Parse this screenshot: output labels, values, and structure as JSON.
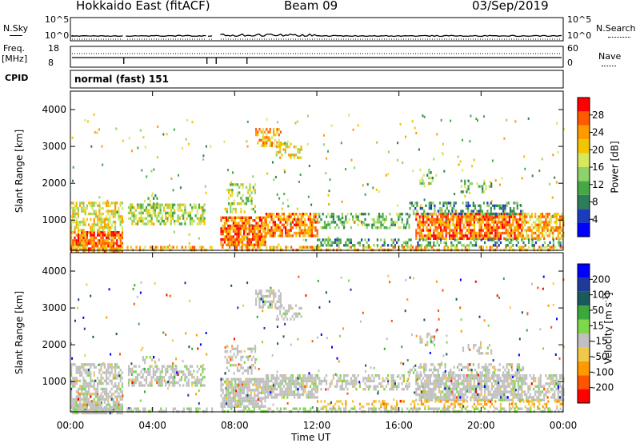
{
  "header": {
    "title": "Hokkaido East (fitACF)",
    "beam": "Beam 09",
    "date": "03/Sep/2019"
  },
  "param_panels": {
    "nsky_label": "N.Sky",
    "nsky_ticks": [
      "10^5",
      "10^0"
    ],
    "nsearch_label": "N.Search",
    "nsearch_ticks": [
      "10^5",
      "10^0"
    ],
    "freq_label": "Freq.",
    "freq_unit": "[MHz]",
    "freq_ticks": [
      "18",
      "8"
    ],
    "nave_label": "Nave",
    "nave_ticks": [
      "60",
      "0"
    ],
    "cpid_label": "CPID",
    "cpid_value": "normal (fast) 151"
  },
  "chart_data": [
    {
      "type": "heatmap",
      "title": "",
      "ylabel": "Slant Range [km]",
      "xlabel": "",
      "ylim": [
        180,
        4500
      ],
      "yticks": [
        "4000",
        "3000",
        "2000",
        "1000"
      ],
      "colorbar_label": "Power [dB]",
      "colorbar_ticks": [
        "28",
        "24",
        "20",
        "16",
        "12",
        "8",
        "4"
      ],
      "colors": [
        "#0000ff",
        "#1a3dbe",
        "#2e7d5a",
        "#45a845",
        "#8fd16a",
        "#d6e85c",
        "#f2c500",
        "#ff9a00",
        "#ff5a00",
        "#ff0000"
      ]
    },
    {
      "type": "heatmap",
      "title": "",
      "ylabel": "Slant Range [km]",
      "xlabel": "Time UT",
      "ylim": [
        180,
        4500
      ],
      "yticks": [
        "4000",
        "3000",
        "2000",
        "1000"
      ],
      "xticks": [
        "00:00",
        "04:00",
        "08:00",
        "12:00",
        "16:00",
        "20:00",
        "00:00"
      ],
      "colorbar_label": "Velocity [m s",
      "colorbar_label_sup": "-1",
      "colorbar_label_end": "]",
      "colorbar_ticks": [
        "200",
        "100",
        "50",
        "15",
        "-15",
        "-50",
        "-100",
        "-200"
      ],
      "colors": [
        "#ff0000",
        "#ff5500",
        "#ff9a00",
        "#f2c84a",
        "#c0c0c0",
        "#7fd84a",
        "#3aa83a",
        "#1a5a5a",
        "#203a9a",
        "#0000ff"
      ]
    }
  ]
}
